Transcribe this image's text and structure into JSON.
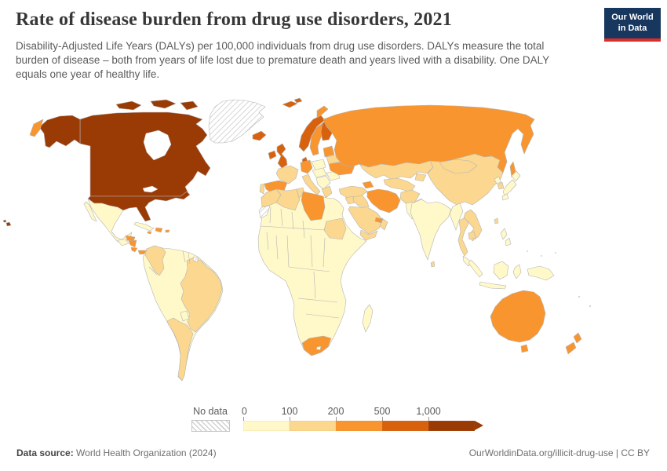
{
  "header": {
    "title": "Rate of disease burden from drug use disorders, 2021",
    "subtitle": "Disability-Adjusted Life Years (DALYs) per 100,000 individuals from drug use disorders. DALYs measure the total burden of disease – both from years of life lost due to premature death and years lived with a disability. One DALY equals one year of healthy life.",
    "logo": {
      "line1": "Our World",
      "line2": "in Data"
    }
  },
  "map": {
    "legend": {
      "no_data_label": "No data",
      "tick_labels": [
        "0",
        "100",
        "200",
        "500",
        "1,000"
      ],
      "bin_colors": [
        "#fff8c9",
        "#fbd78f",
        "#f8952f",
        "#d8610e",
        "#9a3a05"
      ],
      "no_data_border": "#c6c6c6"
    },
    "border_color": "#b5b5b5",
    "ocean_color": "#ffffff"
  },
  "chart_data": {
    "type": "choropleth",
    "title": "Rate of disease burden from drug use disorders, 2021",
    "unit": "DALYs per 100,000 individuals",
    "year": 2021,
    "legend_bins": [
      {
        "range": "0–100",
        "color": "#fff8c9"
      },
      {
        "range": "100–200",
        "color": "#fbd78f"
      },
      {
        "range": "200–500",
        "color": "#f8952f"
      },
      {
        "range": "500–1,000",
        "color": "#d8610e"
      },
      {
        "range": "1,000+",
        "color": "#9a3a05"
      }
    ],
    "region_bins": {
      "united-states": 4,
      "canada": 4,
      "hawaii": 4,
      "iceland": 3,
      "svalbard": 3,
      "norway": 3,
      "finland": 3,
      "denmark": 3,
      "united-kingdom": 3,
      "ireland": 3,
      "russia": 2,
      "sweden": 2,
      "baltic-states": 2,
      "germany": 2,
      "spain": 2,
      "ukraine": 2,
      "caucasus": 2,
      "iran": 2,
      "united-arab-emirates": 2,
      "libya": 2,
      "south-africa": 2,
      "australia": 2,
      "new-zealand": 2,
      "honduras": 2,
      "nicaragua": 2,
      "costa-rica": 2,
      "panama": 2,
      "jamaica": 2,
      "hispaniola": 2,
      "puerto-rico": 2,
      "france": 1,
      "portugal": 1,
      "italy": 1,
      "greece": 1,
      "belarus": 1,
      "turkey": 1,
      "syria": 1,
      "iraq": 1,
      "saudi-arabia": 1,
      "yemen": 1,
      "oman": 1,
      "kazakhstan": 1,
      "uzbekistan-turkmenistan": 1,
      "kyrgyzstan-tajikistan": 1,
      "afghanistan": 1,
      "china": 1,
      "mongolia": 1,
      "south-korea": 1,
      "taiwan": 1,
      "thailand": 1,
      "laos-vietnam": 1,
      "cambodia": 1,
      "morocco": 1,
      "algeria": 1,
      "tunisia": 1,
      "sudan": 1,
      "colombia": 1,
      "brazil": 1,
      "southern-cone": 1,
      "sri-lanka": 1,
      "mexico": 0,
      "guatemala": 0,
      "cuba": 0,
      "south-america-base": 0,
      "paraguay": 0,
      "poland": 0,
      "czech-hungary": 0,
      "balkans": 0,
      "romania": 0,
      "pakistan": 0,
      "india": 0,
      "myanmar": 0,
      "malaysia": 0,
      "indonesia": 0,
      "papua-new-guinea": 0,
      "philippines": 0,
      "japan": 0,
      "north-korea": 0,
      "africa-base": 0,
      "madagascar": 0,
      "lesotho": 0,
      "greenland": "no-data",
      "western-sahara": "no-data",
      "french-guiana": "no-data"
    }
  },
  "footer": {
    "source_label": "Data source:",
    "source_value": " World Health Organization (2024)",
    "credit": "OurWorldinData.org/illicit-drug-use | CC BY"
  }
}
